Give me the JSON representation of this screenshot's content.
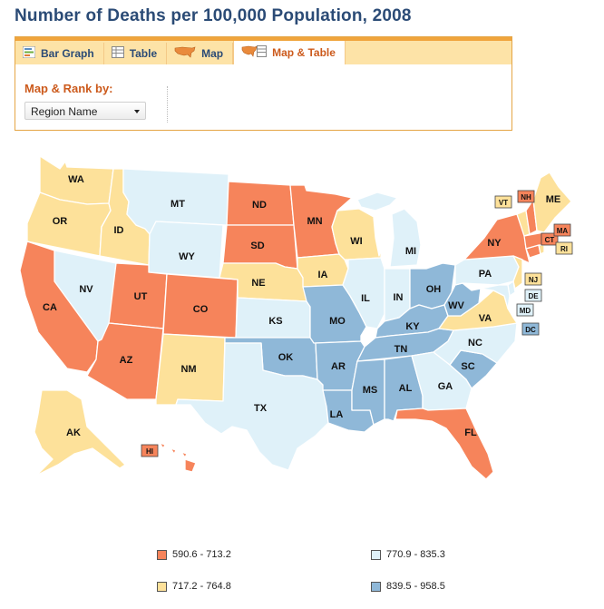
{
  "title": "Number of Deaths per 100,000 Population, 2008",
  "tabs": [
    {
      "label": "Bar Graph",
      "icon": "bar-graph-icon",
      "active": false
    },
    {
      "label": "Table",
      "icon": "table-icon",
      "active": false
    },
    {
      "label": "Map",
      "icon": "us-map-icon",
      "active": false
    },
    {
      "label": "Map & Table",
      "icon": "map-table-icon",
      "active": true
    }
  ],
  "rank_label": "Map & Rank by:",
  "rank_select": {
    "value": "Region Name"
  },
  "colors": {
    "c1": "#f6845b",
    "c2": "#fde19a",
    "c3": "#dff1f9",
    "c4": "#8fb8d8"
  },
  "legend": [
    {
      "range": "590.6 - 713.2",
      "color": "#f6845b"
    },
    {
      "range": "770.9 - 835.3",
      "color": "#dff1f9"
    },
    {
      "range": "717.2 - 764.8",
      "color": "#fde19a"
    },
    {
      "range": "839.5 - 958.5",
      "color": "#8fb8d8"
    }
  ],
  "states": [
    {
      "abbr": "WA",
      "bin": "c2"
    },
    {
      "abbr": "OR",
      "bin": "c2"
    },
    {
      "abbr": "ID",
      "bin": "c2"
    },
    {
      "abbr": "MT",
      "bin": "c3"
    },
    {
      "abbr": "WY",
      "bin": "c3"
    },
    {
      "abbr": "NV",
      "bin": "c3"
    },
    {
      "abbr": "UT",
      "bin": "c1"
    },
    {
      "abbr": "CO",
      "bin": "c1"
    },
    {
      "abbr": "CA",
      "bin": "c1"
    },
    {
      "abbr": "AZ",
      "bin": "c1"
    },
    {
      "abbr": "NM",
      "bin": "c2"
    },
    {
      "abbr": "ND",
      "bin": "c1"
    },
    {
      "abbr": "SD",
      "bin": "c1"
    },
    {
      "abbr": "NE",
      "bin": "c2"
    },
    {
      "abbr": "KS",
      "bin": "c3"
    },
    {
      "abbr": "OK",
      "bin": "c4"
    },
    {
      "abbr": "TX",
      "bin": "c3"
    },
    {
      "abbr": "MN",
      "bin": "c1"
    },
    {
      "abbr": "IA",
      "bin": "c2"
    },
    {
      "abbr": "MO",
      "bin": "c4"
    },
    {
      "abbr": "AR",
      "bin": "c4"
    },
    {
      "abbr": "LA",
      "bin": "c4"
    },
    {
      "abbr": "WI",
      "bin": "c2"
    },
    {
      "abbr": "IL",
      "bin": "c3"
    },
    {
      "abbr": "MI",
      "bin": "c3"
    },
    {
      "abbr": "IN",
      "bin": "c3"
    },
    {
      "abbr": "OH",
      "bin": "c4"
    },
    {
      "abbr": "KY",
      "bin": "c4"
    },
    {
      "abbr": "TN",
      "bin": "c4"
    },
    {
      "abbr": "MS",
      "bin": "c4"
    },
    {
      "abbr": "AL",
      "bin": "c4"
    },
    {
      "abbr": "GA",
      "bin": "c3"
    },
    {
      "abbr": "FL",
      "bin": "c1"
    },
    {
      "abbr": "SC",
      "bin": "c4"
    },
    {
      "abbr": "NC",
      "bin": "c3"
    },
    {
      "abbr": "VA",
      "bin": "c2"
    },
    {
      "abbr": "WV",
      "bin": "c4"
    },
    {
      "abbr": "PA",
      "bin": "c3"
    },
    {
      "abbr": "NY",
      "bin": "c1"
    },
    {
      "abbr": "NJ",
      "bin": "c2"
    },
    {
      "abbr": "DE",
      "bin": "c3"
    },
    {
      "abbr": "MD",
      "bin": "c3"
    },
    {
      "abbr": "DC",
      "bin": "c4"
    },
    {
      "abbr": "CT",
      "bin": "c1"
    },
    {
      "abbr": "RI",
      "bin": "c2"
    },
    {
      "abbr": "MA",
      "bin": "c1"
    },
    {
      "abbr": "VT",
      "bin": "c2"
    },
    {
      "abbr": "NH",
      "bin": "c1"
    },
    {
      "abbr": "ME",
      "bin": "c2"
    },
    {
      "abbr": "AK",
      "bin": "c2"
    },
    {
      "abbr": "HI",
      "bin": "c1"
    }
  ]
}
